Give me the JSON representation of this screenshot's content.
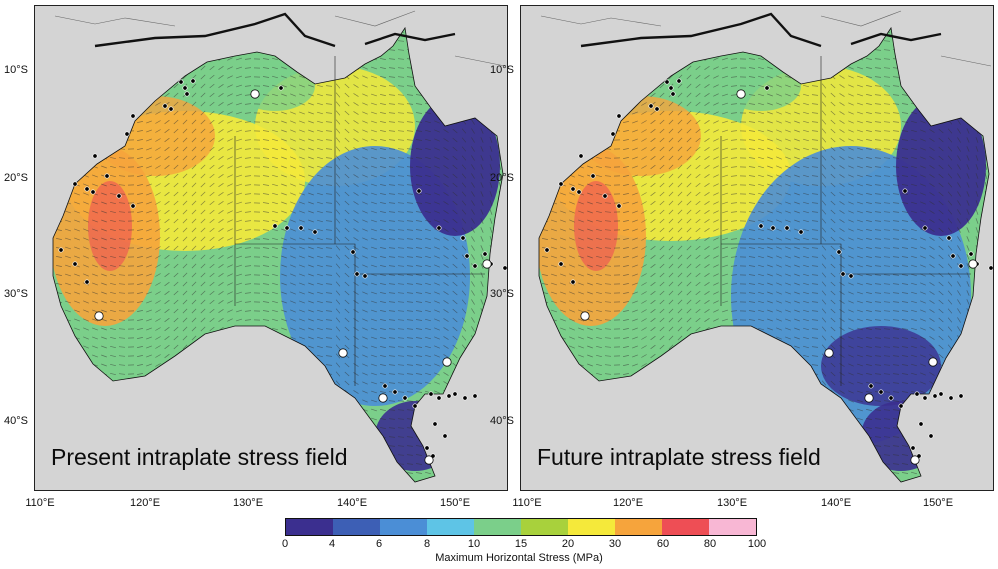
{
  "panels": [
    {
      "label": "Present intraplate stress field",
      "variant": "present"
    },
    {
      "label": "Future intraplate stress field",
      "variant": "future"
    }
  ],
  "axes": {
    "lat_ticks": [
      "10°S",
      "20°S",
      "30°S",
      "40°S"
    ],
    "lon_ticks": [
      "110°E",
      "120°E",
      "130°E",
      "140°E",
      "150°E"
    ]
  },
  "colorbar": {
    "title": "Maximum Horizontal Stress (MPa)",
    "ticks": [
      "0",
      "4",
      "6",
      "8",
      "10",
      "15",
      "20",
      "30",
      "60",
      "80",
      "100"
    ],
    "colors": [
      "#3b2f8f",
      "#3d5fb5",
      "#4b8ed6",
      "#5ec4e6",
      "#7bcf8a",
      "#a8d13c",
      "#f5e93a",
      "#f6a43c",
      "#ee4e55",
      "#f8b7d4"
    ]
  },
  "legend_map_colors": {
    "ocean": "#d4d4d4",
    "very_low": "#3b2f8f",
    "low": "#4b8ed6",
    "mid": "#7bcf8a",
    "high": "#f5e93a",
    "very_high": "#f6a43c",
    "extreme": "#ee4e55"
  }
}
